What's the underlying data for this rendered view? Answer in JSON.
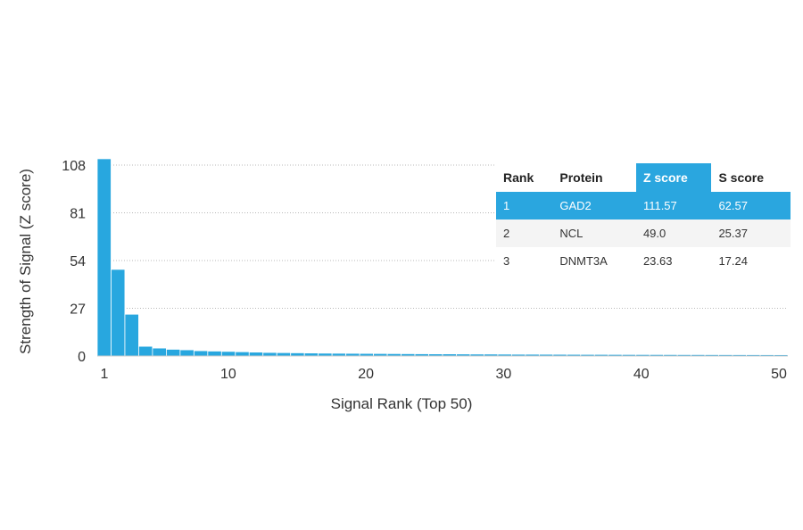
{
  "chart_data": {
    "type": "bar",
    "xlabel": "Signal Rank (Top 50)",
    "ylabel": "Strength of Signal (Z score)",
    "yticks": [
      0,
      27,
      54,
      81,
      108
    ],
    "xticks": [
      1,
      10,
      20,
      30,
      40,
      50
    ],
    "ylim": [
      0,
      115
    ],
    "xlim": [
      1,
      50
    ],
    "grid": true,
    "bar_color": "#28a7df",
    "x": [
      1,
      2,
      3,
      4,
      5,
      6,
      7,
      8,
      9,
      10,
      11,
      12,
      13,
      14,
      15,
      16,
      17,
      18,
      19,
      20,
      21,
      22,
      23,
      24,
      25,
      26,
      27,
      28,
      29,
      30,
      31,
      32,
      33,
      34,
      35,
      36,
      37,
      38,
      39,
      40,
      41,
      42,
      43,
      44,
      45,
      46,
      47,
      48,
      49,
      50
    ],
    "values": [
      111.57,
      49.0,
      23.63,
      5.5,
      4.5,
      3.8,
      3.5,
      3.0,
      2.8,
      2.6,
      2.4,
      2.2,
      2.0,
      1.9,
      1.8,
      1.7,
      1.6,
      1.55,
      1.5,
      1.45,
      1.4,
      1.35,
      1.3,
      1.25,
      1.2,
      1.2,
      1.15,
      1.1,
      1.1,
      1.05,
      1.0,
      1.0,
      0.98,
      0.95,
      0.93,
      0.9,
      0.9,
      0.88,
      0.86,
      0.85,
      0.84,
      0.82,
      0.8,
      0.8,
      0.78,
      0.77,
      0.76,
      0.75,
      0.74,
      0.72
    ]
  },
  "table": {
    "headers": [
      "Rank",
      "Protein",
      "Z score",
      "S score"
    ],
    "highlight_color": "#2aa6df",
    "rows": [
      [
        "1",
        "GAD2",
        "111.57",
        "62.57"
      ],
      [
        "2",
        "NCL",
        "49.0",
        "25.37"
      ],
      [
        "3",
        "DNMT3A",
        "23.63",
        "17.24"
      ]
    ]
  }
}
